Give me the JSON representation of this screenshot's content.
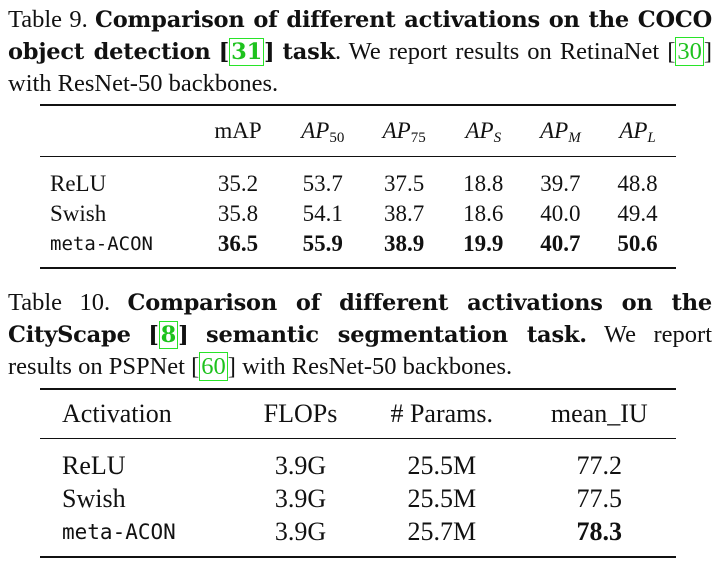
{
  "table9": {
    "label": "Table 9.",
    "title_bold_1": "Comparison of different activations on the COCO object detection",
    "cite1": "31",
    "title_bold_2": "task",
    "desc_1": ". We report results on RetinaNet",
    "cite2": "30",
    "desc_2": "with ResNet-50 backbones.",
    "columns": {
      "mAP": "mAP",
      "ap50": {
        "main": "AP",
        "sub": "50"
      },
      "ap75": {
        "main": "AP",
        "sub": "75"
      },
      "aps": {
        "main": "AP",
        "sub": "S"
      },
      "apm": {
        "main": "AP",
        "sub": "M"
      },
      "apl": {
        "main": "AP",
        "sub": "L"
      }
    },
    "rows": [
      {
        "name": "ReLU",
        "values": [
          "35.2",
          "53.7",
          "37.5",
          "18.8",
          "39.7",
          "48.8"
        ]
      },
      {
        "name": "Swish",
        "values": [
          "35.8",
          "54.1",
          "38.7",
          "18.6",
          "40.0",
          "49.4"
        ]
      },
      {
        "name": "meta-ACON",
        "values": [
          "36.5",
          "55.9",
          "38.9",
          "19.9",
          "40.7",
          "50.6"
        ]
      }
    ]
  },
  "table10": {
    "label": "Table 10.",
    "title_bold_1": "Comparison of different activations on the CityScape",
    "cite1": "8",
    "title_bold_2": "semantic segmentation task.",
    "desc_1": "We report results on PSPNet",
    "cite2": "60",
    "desc_2": "with ResNet-50 backbones.",
    "columns": [
      "Activation",
      "FLOPs",
      "# Params.",
      "mean_IU"
    ],
    "rows": [
      {
        "name": "ReLU",
        "values": [
          "3.9G",
          "25.5M",
          "77.2"
        ]
      },
      {
        "name": "Swish",
        "values": [
          "3.9G",
          "25.5M",
          "77.5"
        ]
      },
      {
        "name": "meta-ACON",
        "values": [
          "3.9G",
          "25.7M",
          "78.3"
        ]
      }
    ]
  }
}
